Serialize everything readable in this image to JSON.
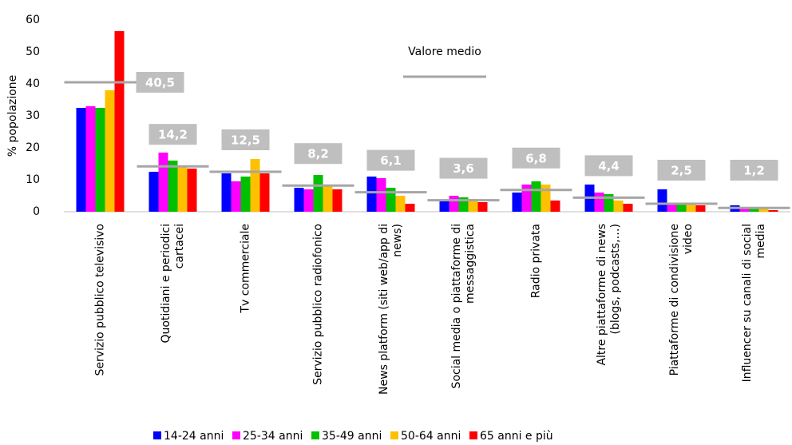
{
  "chart_data": {
    "type": "bar",
    "y_label": "% popolazione",
    "categories": [
      "Servizio pubblico televisivo",
      "Quotidiani e periodici cartacei",
      "Tv commerciale",
      "Servizio pubblico radiofonico",
      "News platform (siti web/app di news)",
      "Social media o piattaforme di messaggistica",
      "Radio privata",
      "Altre piattaforme di news (blogs, podcasts,…)",
      "Piattaforme di condivisione video",
      "Influencer su canali di social media"
    ],
    "series": [
      {
        "name": "14-24 anni",
        "color": "#0000ff",
        "values": [
          32.5,
          12.5,
          12,
          7.5,
          11,
          3.5,
          6,
          8.5,
          7,
          2
        ]
      },
      {
        "name": "25-34 anni",
        "color": "#ff00ff",
        "values": [
          33,
          18.5,
          9.5,
          7,
          10.5,
          5,
          8.5,
          6,
          2.5,
          1.5
        ]
      },
      {
        "name": "35-49 anni",
        "color": "#00c000",
        "values": [
          32.5,
          16,
          11,
          11.5,
          7.5,
          4.5,
          9.5,
          5.5,
          2.5,
          1.5
        ]
      },
      {
        "name": "50-64 anni",
        "color": "#ffc000",
        "values": [
          38,
          14,
          16.5,
          8.5,
          5,
          4,
          8.5,
          3.5,
          2.5,
          1
        ]
      },
      {
        "name": "65 anni e più",
        "color": "#ff0000",
        "values": [
          56.5,
          13.5,
          12,
          7,
          2.5,
          3,
          3.5,
          2.5,
          2,
          0.5
        ]
      }
    ],
    "average": {
      "name": "Valore medio",
      "color": "#a6a6a6",
      "values": [
        40.5,
        14.2,
        12.5,
        8.2,
        6.1,
        3.6,
        6.8,
        4.4,
        2.5,
        1.2
      ],
      "value_labels": [
        "40,5",
        "14,2",
        "12,5",
        "8,2",
        "6,1",
        "3,6",
        "6,8",
        "4,4",
        "2,5",
        "1,2"
      ]
    },
    "ylim": [
      0,
      60
    ],
    "yticks": [
      0,
      10,
      20,
      30,
      40,
      50,
      60
    ],
    "grid": false
  }
}
